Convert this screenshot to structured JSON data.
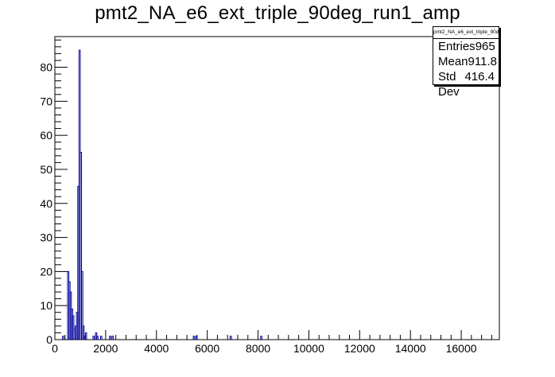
{
  "title": "pmt2_NA_e6_ext_triple_90deg_run1_amp",
  "stats": {
    "name": "pmt2_NA_e6_ext_triple_90deg_run1_amp",
    "entries_label": "Entries",
    "entries_value": "965",
    "mean_label": "Mean",
    "mean_value": "911.8",
    "stddev_label": "Std Dev",
    "stddev_value": "416.4"
  },
  "colors": {
    "histogram": "#000099",
    "axis": "#000000"
  },
  "chart_data": {
    "type": "bar",
    "title": "pmt2_NA_e6_ext_triple_90deg_run1_amp",
    "xlabel": "",
    "ylabel": "",
    "xlim": [
      0,
      17500
    ],
    "ylim": [
      0,
      89
    ],
    "bin_width": 50,
    "x_ticks": [
      0,
      2000,
      4000,
      6000,
      8000,
      10000,
      12000,
      14000,
      16000
    ],
    "x_tick_labels": [
      "0",
      "2000",
      "4000",
      "6000",
      "8000",
      "10000",
      "12000",
      "14000",
      "16000"
    ],
    "y_ticks": [
      0,
      10,
      20,
      30,
      40,
      50,
      60,
      70,
      80
    ],
    "y_tick_labels": [
      "0",
      "10",
      "20",
      "30",
      "40",
      "50",
      "60",
      "70",
      "80"
    ],
    "bins": [
      {
        "x": 300,
        "y": 1
      },
      {
        "x": 500,
        "y": 20
      },
      {
        "x": 550,
        "y": 17
      },
      {
        "x": 600,
        "y": 14
      },
      {
        "x": 650,
        "y": 9
      },
      {
        "x": 700,
        "y": 7
      },
      {
        "x": 750,
        "y": 3
      },
      {
        "x": 800,
        "y": 4
      },
      {
        "x": 850,
        "y": 8
      },
      {
        "x": 900,
        "y": 45
      },
      {
        "x": 950,
        "y": 85
      },
      {
        "x": 1000,
        "y": 55
      },
      {
        "x": 1050,
        "y": 20
      },
      {
        "x": 1100,
        "y": 4
      },
      {
        "x": 1150,
        "y": 1
      },
      {
        "x": 1200,
        "y": 2
      },
      {
        "x": 1500,
        "y": 1
      },
      {
        "x": 1600,
        "y": 2
      },
      {
        "x": 1650,
        "y": 1
      },
      {
        "x": 1800,
        "y": 1
      },
      {
        "x": 2150,
        "y": 1
      },
      {
        "x": 2250,
        "y": 1
      },
      {
        "x": 5450,
        "y": 1
      },
      {
        "x": 5550,
        "y": 1
      },
      {
        "x": 6900,
        "y": 1
      },
      {
        "x": 8100,
        "y": 1
      }
    ]
  }
}
